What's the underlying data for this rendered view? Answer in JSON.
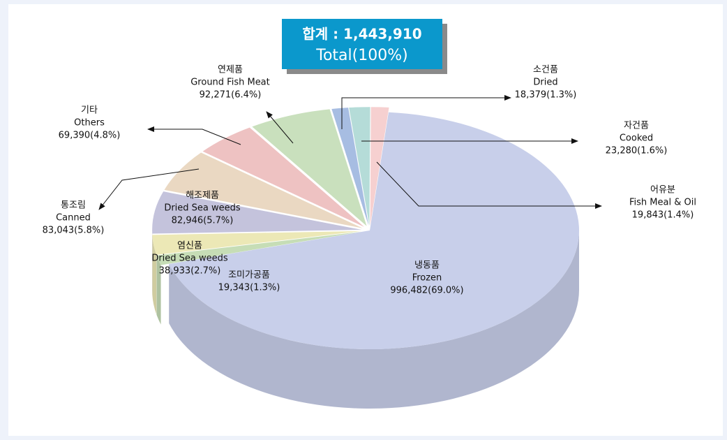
{
  "chart_data": {
    "type": "pie3d",
    "total_title": "합계  :  1,443,910",
    "total_subtitle": "Total(100%)",
    "labels_ko": [
      "냉동품",
      "조미가공품",
      "염신품",
      "해조제품",
      "통조림",
      "기타",
      "연제품",
      "소건품",
      "자건품",
      "어유분"
    ],
    "labels_en": [
      "Frozen",
      null,
      "Dried Sea weeds",
      "Dried Sea weeds",
      "Canned",
      "Others",
      "Ground Fish Meat",
      "Dried",
      "Cooked",
      "Fish Meal & Oil"
    ],
    "values": [
      996482,
      19343,
      38933,
      82946,
      83043,
      69390,
      92271,
      18379,
      23280,
      19843
    ],
    "value_labels": [
      "996,482(69.0%)",
      "19,343(1.3%)",
      "38,933(2.7%)",
      "82,946(5.7%)",
      "83,043(5.8%)",
      "69,390(4.8%)",
      "92,271(6.4%)",
      "18,379(1.3%)",
      "23,280(1.6%)",
      "19,843(1.4%)"
    ],
    "colors": [
      "#c8cfea",
      "#c6ddb6",
      "#ece8b6",
      "#c4c3dc",
      "#ead8c2",
      "#eec2c2",
      "#c9e0bd",
      "#a7bde2",
      "#b5dcd8",
      "#f6d0d0"
    ]
  }
}
